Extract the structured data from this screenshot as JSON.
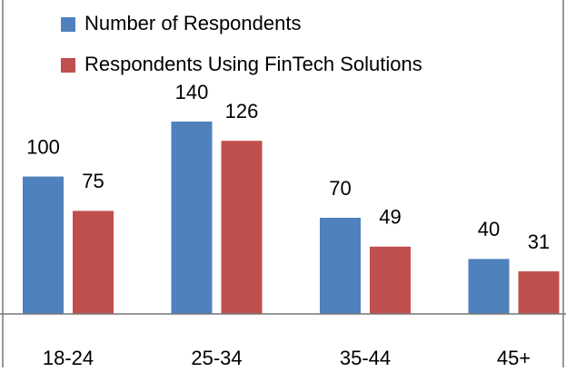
{
  "chart_data": {
    "type": "bar",
    "categories": [
      "18-24",
      "25-34",
      "35-44",
      "45+"
    ],
    "series": [
      {
        "name": "Number of Respondents",
        "color": "#4f81bd",
        "values": [
          100,
          140,
          70,
          40
        ]
      },
      {
        "name": "Respondents Using FinTech Solutions",
        "color": "#c0504d",
        "values": [
          75,
          126,
          49,
          31
        ]
      }
    ],
    "data_labels": true
  }
}
